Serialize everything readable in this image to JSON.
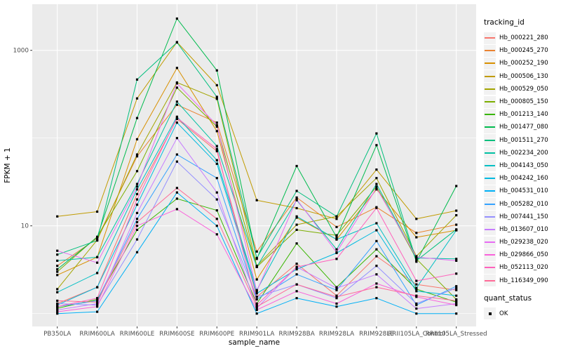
{
  "figure": {
    "background": "#FFFFFF",
    "panel_background": "#EBEBEB",
    "gridline_color": "#FFFFFF",
    "tick_label_color": "#4D4D4D",
    "axis_title_color": "#000000",
    "point_color": "#000000",
    "legend_key_background": "#F2F2F2"
  },
  "axes": {
    "x_title": "sample_name",
    "y_title": "FPKM + 1",
    "y_scale": "log10",
    "y_major_ticks": [
      {
        "label": "1000",
        "value": 1000
      },
      {
        "label": "10",
        "value": 10
      }
    ],
    "y_minor_values": [
      1,
      100
    ]
  },
  "legend": {
    "title": "tracking_id"
  },
  "legend2": {
    "title": "quant_status",
    "items": [
      {
        "label": "OK",
        "marker": "black-square-icon"
      }
    ]
  },
  "chart_data": {
    "type": "line",
    "title": "",
    "xlabel": "sample_name",
    "ylabel": "FPKM + 1",
    "log_y": true,
    "ylim": [
      1,
      2300
    ],
    "grid": true,
    "legend_position": "right",
    "point_marker": "small-black-square",
    "x_categories": [
      "PB350LA",
      "RRIM600LA",
      "RRIM600LE",
      "RRIM600SE",
      "RRIM600PE",
      "RRIM901LA",
      "RRIM928BA",
      "RRIM928LA",
      "RRIM928LE",
      "RRII105LA_Control",
      "RRII105LA_Stressed"
    ],
    "series": [
      {
        "name": "Hb_000221_280",
        "color": "#F8766D",
        "values": [
          1.3,
          2.0,
          23,
          165,
          71,
          1.55,
          3.7,
          1.6,
          4.5,
          2.15,
          1.85
        ]
      },
      {
        "name": "Hb_000245_270",
        "color": "#EA8331",
        "values": [
          3.5,
          7.2,
          62,
          240,
          150,
          5.1,
          21,
          9.7,
          16.3,
          8.3,
          10.3
        ]
      },
      {
        "name": "Hb_000252_190",
        "color": "#D89000",
        "values": [
          2.75,
          4.4,
          97,
          630,
          120,
          2.45,
          12.4,
          7.0,
          26,
          7.4,
          8.9
        ]
      },
      {
        "name": "Hb_000506_130",
        "color": "#C09B00",
        "values": [
          12.8,
          14.5,
          283,
          1240,
          400,
          19.6,
          15.9,
          12.0,
          43.7,
          12.0,
          14.9
        ]
      },
      {
        "name": "Hb_000529_050",
        "color": "#A3A500",
        "values": [
          1.9,
          6.9,
          65,
          430,
          280,
          3.5,
          10.3,
          12.8,
          35,
          4.5,
          13.2
        ]
      },
      {
        "name": "Hb_000805_150",
        "color": "#7CAE00",
        "values": [
          3.0,
          7.5,
          42,
          375,
          135,
          3.4,
          9.0,
          7.8,
          28,
          4.2,
          1.45
        ]
      },
      {
        "name": "Hb_001213_140",
        "color": "#39B600",
        "values": [
          1.15,
          1.45,
          9.0,
          20.4,
          15,
          1.3,
          6.3,
          2.0,
          5.4,
          1.9,
          1.35
        ]
      },
      {
        "name": "Hb_001477_080",
        "color": "#00BB4E",
        "values": [
          3.2,
          7.4,
          169,
          2300,
          590,
          4.2,
          48,
          7.4,
          83,
          3.9,
          28.4
        ]
      },
      {
        "name": "Hb_001511_270",
        "color": "#00BF7D",
        "values": [
          4.7,
          6.8,
          465,
          1230,
          295,
          4.3,
          25,
          12.8,
          113,
          4.0,
          9.1
        ]
      },
      {
        "name": "Hb_002234_200",
        "color": "#00C1A3",
        "values": [
          4.0,
          4.4,
          30,
          260,
          81,
          3.4,
          19.6,
          5.4,
          30,
          4.3,
          4.2
        ]
      },
      {
        "name": "Hb_004143_050",
        "color": "#00BFC4",
        "values": [
          1.75,
          2.9,
          26,
          175,
          56,
          1.85,
          12.8,
          7.0,
          10.7,
          1.96,
          8.9
        ]
      },
      {
        "name": "Hb_004242_160",
        "color": "#00BAE0",
        "values": [
          1.25,
          2.0,
          17.4,
          150,
          51,
          1.7,
          3.2,
          4.9,
          8.9,
          1.8,
          1.6
        ]
      },
      {
        "name": "Hb_004531_010",
        "color": "#00B0F6",
        "values": [
          1.0,
          1.05,
          5.0,
          24,
          10,
          1.0,
          1.5,
          1.2,
          1.5,
          1.0,
          1.0
        ]
      },
      {
        "name": "Hb_005282_010",
        "color": "#35A2FF",
        "values": [
          1.2,
          1.4,
          12,
          65,
          35,
          1.45,
          2.8,
          1.85,
          6.7,
          1.25,
          2.05
        ]
      },
      {
        "name": "Hb_007441_150",
        "color": "#9590FF",
        "values": [
          1.3,
          1.25,
          7.0,
          54,
          20,
          1.55,
          2.15,
          1.5,
          3.5,
          1.3,
          1.95
        ]
      },
      {
        "name": "Hb_013607_010",
        "color": "#C77CFF",
        "values": [
          1.1,
          1.3,
          14,
          100,
          24,
          1.15,
          3.4,
          1.95,
          2.8,
          1.14,
          1.3
        ]
      },
      {
        "name": "Hb_029238_020",
        "color": "#E76BF3",
        "values": [
          5.2,
          3.8,
          28,
          420,
          140,
          1.8,
          20,
          5.0,
          27,
          4.4,
          4.0
        ]
      },
      {
        "name": "Hb_029866_050",
        "color": "#FA62DB",
        "values": [
          1.05,
          1.2,
          10,
          15.5,
          8.0,
          1.1,
          1.8,
          1.3,
          2.2,
          1.55,
          1.25
        ]
      },
      {
        "name": "Hb_052113_020",
        "color": "#FF62BC",
        "values": [
          1.2,
          1.5,
          20,
          170,
          75,
          1.25,
          3.4,
          4.2,
          16,
          2.36,
          2.85
        ]
      },
      {
        "name": "Hb_116349_090",
        "color": "#FF6A98",
        "values": [
          1.4,
          1.35,
          11,
          27,
          12,
          1.2,
          2.15,
          1.55,
          2.0,
          1.6,
          1.4
        ]
      }
    ]
  }
}
